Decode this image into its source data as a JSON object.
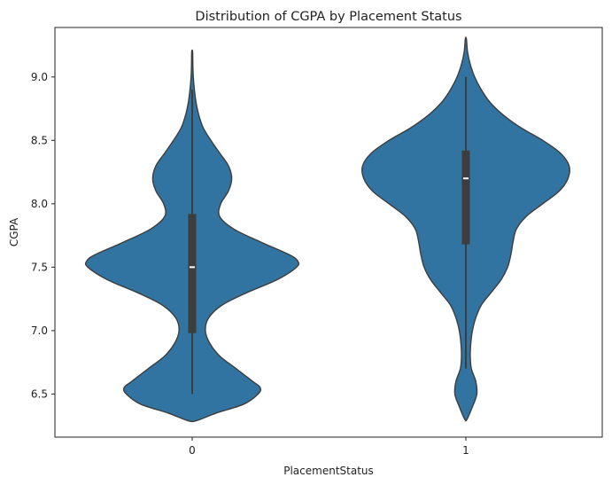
{
  "chart_data": {
    "type": "violin",
    "title": "Distribution of CGPA by Placement Status",
    "xlabel": "PlacementStatus",
    "ylabel": "CGPA",
    "categories": [
      "0",
      "1"
    ],
    "ylim": [
      6.16,
      9.39
    ],
    "yticks": [
      6.5,
      7.0,
      7.5,
      8.0,
      8.5,
      9.0
    ],
    "ytick_labels": [
      "6.5",
      "7.0",
      "7.5",
      "8.0",
      "8.5",
      "9.0"
    ],
    "grid": false,
    "color": "#3274a1",
    "edge_color": "#3d3d3d",
    "violins": [
      {
        "category": "0",
        "min": 6.5,
        "q1": 6.98,
        "median": 7.5,
        "q3": 7.92,
        "max": 8.9,
        "kde_min": 6.29,
        "kde_max": 9.2,
        "density": [
          [
            6.29,
            0.04
          ],
          [
            6.35,
            0.22
          ],
          [
            6.42,
            0.47
          ],
          [
            6.5,
            0.6
          ],
          [
            6.55,
            0.62
          ],
          [
            6.6,
            0.55
          ],
          [
            6.7,
            0.4
          ],
          [
            6.8,
            0.25
          ],
          [
            6.9,
            0.16
          ],
          [
            7.0,
            0.12
          ],
          [
            7.1,
            0.15
          ],
          [
            7.2,
            0.27
          ],
          [
            7.3,
            0.5
          ],
          [
            7.4,
            0.77
          ],
          [
            7.5,
            0.95
          ],
          [
            7.55,
            0.96
          ],
          [
            7.6,
            0.88
          ],
          [
            7.7,
            0.62
          ],
          [
            7.8,
            0.38
          ],
          [
            7.9,
            0.25
          ],
          [
            8.0,
            0.26
          ],
          [
            8.1,
            0.33
          ],
          [
            8.2,
            0.36
          ],
          [
            8.3,
            0.33
          ],
          [
            8.4,
            0.25
          ],
          [
            8.5,
            0.17
          ],
          [
            8.6,
            0.1
          ],
          [
            8.7,
            0.06
          ],
          [
            8.8,
            0.035
          ],
          [
            8.9,
            0.02
          ],
          [
            9.0,
            0.01
          ],
          [
            9.1,
            0.006
          ],
          [
            9.2,
            0.004
          ]
        ]
      },
      {
        "category": "1",
        "min": 6.7,
        "q1": 7.68,
        "median": 8.2,
        "q3": 8.42,
        "max": 9.0,
        "kde_min": 6.3,
        "kde_max": 9.3,
        "density": [
          [
            6.3,
            0.01
          ],
          [
            6.4,
            0.06
          ],
          [
            6.5,
            0.1
          ],
          [
            6.6,
            0.09
          ],
          [
            6.7,
            0.05
          ],
          [
            6.8,
            0.04
          ],
          [
            6.9,
            0.045
          ],
          [
            7.0,
            0.06
          ],
          [
            7.1,
            0.09
          ],
          [
            7.2,
            0.14
          ],
          [
            7.3,
            0.23
          ],
          [
            7.4,
            0.32
          ],
          [
            7.5,
            0.38
          ],
          [
            7.6,
            0.41
          ],
          [
            7.7,
            0.43
          ],
          [
            7.8,
            0.46
          ],
          [
            7.9,
            0.55
          ],
          [
            8.0,
            0.7
          ],
          [
            8.1,
            0.85
          ],
          [
            8.2,
            0.93
          ],
          [
            8.3,
            0.94
          ],
          [
            8.4,
            0.86
          ],
          [
            8.5,
            0.7
          ],
          [
            8.6,
            0.5
          ],
          [
            8.7,
            0.34
          ],
          [
            8.8,
            0.22
          ],
          [
            8.9,
            0.14
          ],
          [
            9.0,
            0.08
          ],
          [
            9.1,
            0.04
          ],
          [
            9.2,
            0.015
          ],
          [
            9.3,
            0.005
          ]
        ]
      }
    ]
  }
}
